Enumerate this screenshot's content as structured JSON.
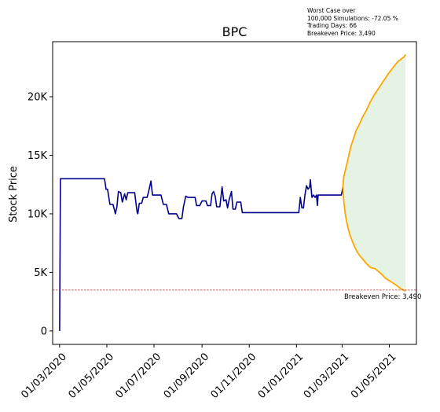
{
  "chart_data": {
    "type": "line",
    "title": "BPC",
    "ylabel": "Stock Price",
    "xlabel": "",
    "ylim": [
      -1150,
      24700
    ],
    "xlim": [
      "2020-02-21",
      "2021-06-05"
    ],
    "y_ticks": [
      0,
      5000,
      10000,
      15000,
      20000
    ],
    "y_tick_labels": [
      "0",
      "5K",
      "10K",
      "15K",
      "20K"
    ],
    "x_ticks": [
      "2020-03-01",
      "2020-05-01",
      "2020-07-01",
      "2020-09-01",
      "2020-11-01",
      "2021-01-01",
      "2021-03-01",
      "2021-05-01"
    ],
    "x_tick_labels": [
      "01/03/2020",
      "01/05/2020",
      "01/07/2020",
      "01/09/2020",
      "01/11/2020",
      "01/01/2021",
      "01/03/2021",
      "01/05/2021"
    ],
    "annotation_lines": [
      "Worst Case over",
      "100,000 Simulations: -72.05 %",
      "Trading Days: 66",
      "Breakeven Price: 3,490"
    ],
    "breakeven": {
      "value": 3490,
      "label": "Breakeven Price: 3,490",
      "color": "#d62728"
    },
    "series": [
      {
        "color": "#00008b",
        "points": [
          [
            "2020-03-01",
            0
          ],
          [
            "2020-03-02",
            13000
          ],
          [
            "2020-04-28",
            13000
          ],
          [
            "2020-04-30",
            12100
          ],
          [
            "2020-05-02",
            12100
          ],
          [
            "2020-05-05",
            10800
          ],
          [
            "2020-05-09",
            10800
          ],
          [
            "2020-05-11",
            10300
          ],
          [
            "2020-05-12",
            10000
          ],
          [
            "2020-05-14",
            10600
          ],
          [
            "2020-05-16",
            11900
          ],
          [
            "2020-05-19",
            11800
          ],
          [
            "2020-05-21",
            11000
          ],
          [
            "2020-05-24",
            11700
          ],
          [
            "2020-05-26",
            11200
          ],
          [
            "2020-05-28",
            11800
          ],
          [
            "2020-06-03",
            11800
          ],
          [
            "2020-06-06",
            11800
          ],
          [
            "2020-06-09",
            10200
          ],
          [
            "2020-06-10",
            10000
          ],
          [
            "2020-06-12",
            10900
          ],
          [
            "2020-06-15",
            10900
          ],
          [
            "2020-06-17",
            11400
          ],
          [
            "2020-06-22",
            11400
          ],
          [
            "2020-06-24",
            11900
          ],
          [
            "2020-06-27",
            12800
          ],
          [
            "2020-06-29",
            11600
          ],
          [
            "2020-07-10",
            11600
          ],
          [
            "2020-07-13",
            10800
          ],
          [
            "2020-07-17",
            10800
          ],
          [
            "2020-07-20",
            10000
          ],
          [
            "2020-07-30",
            10000
          ],
          [
            "2020-08-02",
            9600
          ],
          [
            "2020-08-06",
            9600
          ],
          [
            "2020-08-08",
            10600
          ],
          [
            "2020-08-11",
            11500
          ],
          [
            "2020-08-14",
            11400
          ],
          [
            "2020-08-23",
            11400
          ],
          [
            "2020-08-25",
            10700
          ],
          [
            "2020-08-29",
            10700
          ],
          [
            "2020-09-01",
            11100
          ],
          [
            "2020-09-06",
            11100
          ],
          [
            "2020-09-08",
            10700
          ],
          [
            "2020-09-12",
            10700
          ],
          [
            "2020-09-14",
            11700
          ],
          [
            "2020-09-16",
            11900
          ],
          [
            "2020-09-18",
            11500
          ],
          [
            "2020-09-20",
            10600
          ],
          [
            "2020-09-24",
            10600
          ],
          [
            "2020-09-27",
            12300
          ],
          [
            "2020-09-29",
            11100
          ],
          [
            "2020-10-02",
            11200
          ],
          [
            "2020-10-04",
            10500
          ],
          [
            "2020-10-06",
            11200
          ],
          [
            "2020-10-09",
            11900
          ],
          [
            "2020-10-11",
            10400
          ],
          [
            "2020-10-14",
            10400
          ],
          [
            "2020-10-16",
            11000
          ],
          [
            "2020-10-21",
            11000
          ],
          [
            "2020-10-23",
            10100
          ],
          [
            "2020-11-20",
            10100
          ],
          [
            "2020-12-10",
            10100
          ],
          [
            "2020-12-29",
            10100
          ],
          [
            "2021-01-04",
            10100
          ],
          [
            "2021-01-06",
            11400
          ],
          [
            "2021-01-08",
            10500
          ],
          [
            "2021-01-10",
            10500
          ],
          [
            "2021-01-12",
            11600
          ],
          [
            "2021-01-14",
            12400
          ],
          [
            "2021-01-16",
            12100
          ],
          [
            "2021-01-18",
            12300
          ],
          [
            "2021-01-19",
            12900
          ],
          [
            "2021-01-21",
            11400
          ],
          [
            "2021-01-23",
            11600
          ],
          [
            "2021-01-25",
            11400
          ],
          [
            "2021-01-27",
            11600
          ],
          [
            "2021-01-28",
            10700
          ],
          [
            "2021-01-29",
            11600
          ],
          [
            "2021-02-28",
            11600
          ],
          [
            "2021-03-01",
            11900
          ],
          [
            "2021-03-02",
            12300
          ]
        ]
      }
    ],
    "projection": {
      "color": "#ffa500",
      "fill_color": "#2ca02c",
      "start": [
        "2021-03-02",
        12300
      ],
      "upper": [
        [
          "2021-03-03",
          13100
        ],
        [
          "2021-03-05",
          13700
        ],
        [
          "2021-03-07",
          14200
        ],
        [
          "2021-03-09",
          14800
        ],
        [
          "2021-03-11",
          15400
        ],
        [
          "2021-03-13",
          15900
        ],
        [
          "2021-03-16",
          16500
        ],
        [
          "2021-03-19",
          17100
        ],
        [
          "2021-03-23",
          17600
        ],
        [
          "2021-03-27",
          18200
        ],
        [
          "2021-04-01",
          18800
        ],
        [
          "2021-04-06",
          19500
        ],
        [
          "2021-04-11",
          20100
        ],
        [
          "2021-04-17",
          20700
        ],
        [
          "2021-04-23",
          21300
        ],
        [
          "2021-04-29",
          21900
        ],
        [
          "2021-05-06",
          22500
        ],
        [
          "2021-05-12",
          23000
        ],
        [
          "2021-05-20",
          23400
        ],
        [
          "2021-05-22",
          23600
        ]
      ],
      "lower": [
        [
          "2021-03-03",
          11200
        ],
        [
          "2021-03-05",
          10000
        ],
        [
          "2021-03-07",
          9300
        ],
        [
          "2021-03-09",
          8700
        ],
        [
          "2021-03-11",
          8200
        ],
        [
          "2021-03-14",
          7700
        ],
        [
          "2021-03-17",
          7200
        ],
        [
          "2021-03-20",
          6800
        ],
        [
          "2021-03-24",
          6400
        ],
        [
          "2021-03-28",
          6100
        ],
        [
          "2021-04-02",
          5700
        ],
        [
          "2021-04-07",
          5400
        ],
        [
          "2021-04-13",
          5300
        ],
        [
          "2021-04-20",
          4900
        ],
        [
          "2021-04-26",
          4500
        ],
        [
          "2021-05-03",
          4200
        ],
        [
          "2021-05-10",
          3900
        ],
        [
          "2021-05-16",
          3600
        ],
        [
          "2021-05-22",
          3400
        ]
      ]
    }
  }
}
